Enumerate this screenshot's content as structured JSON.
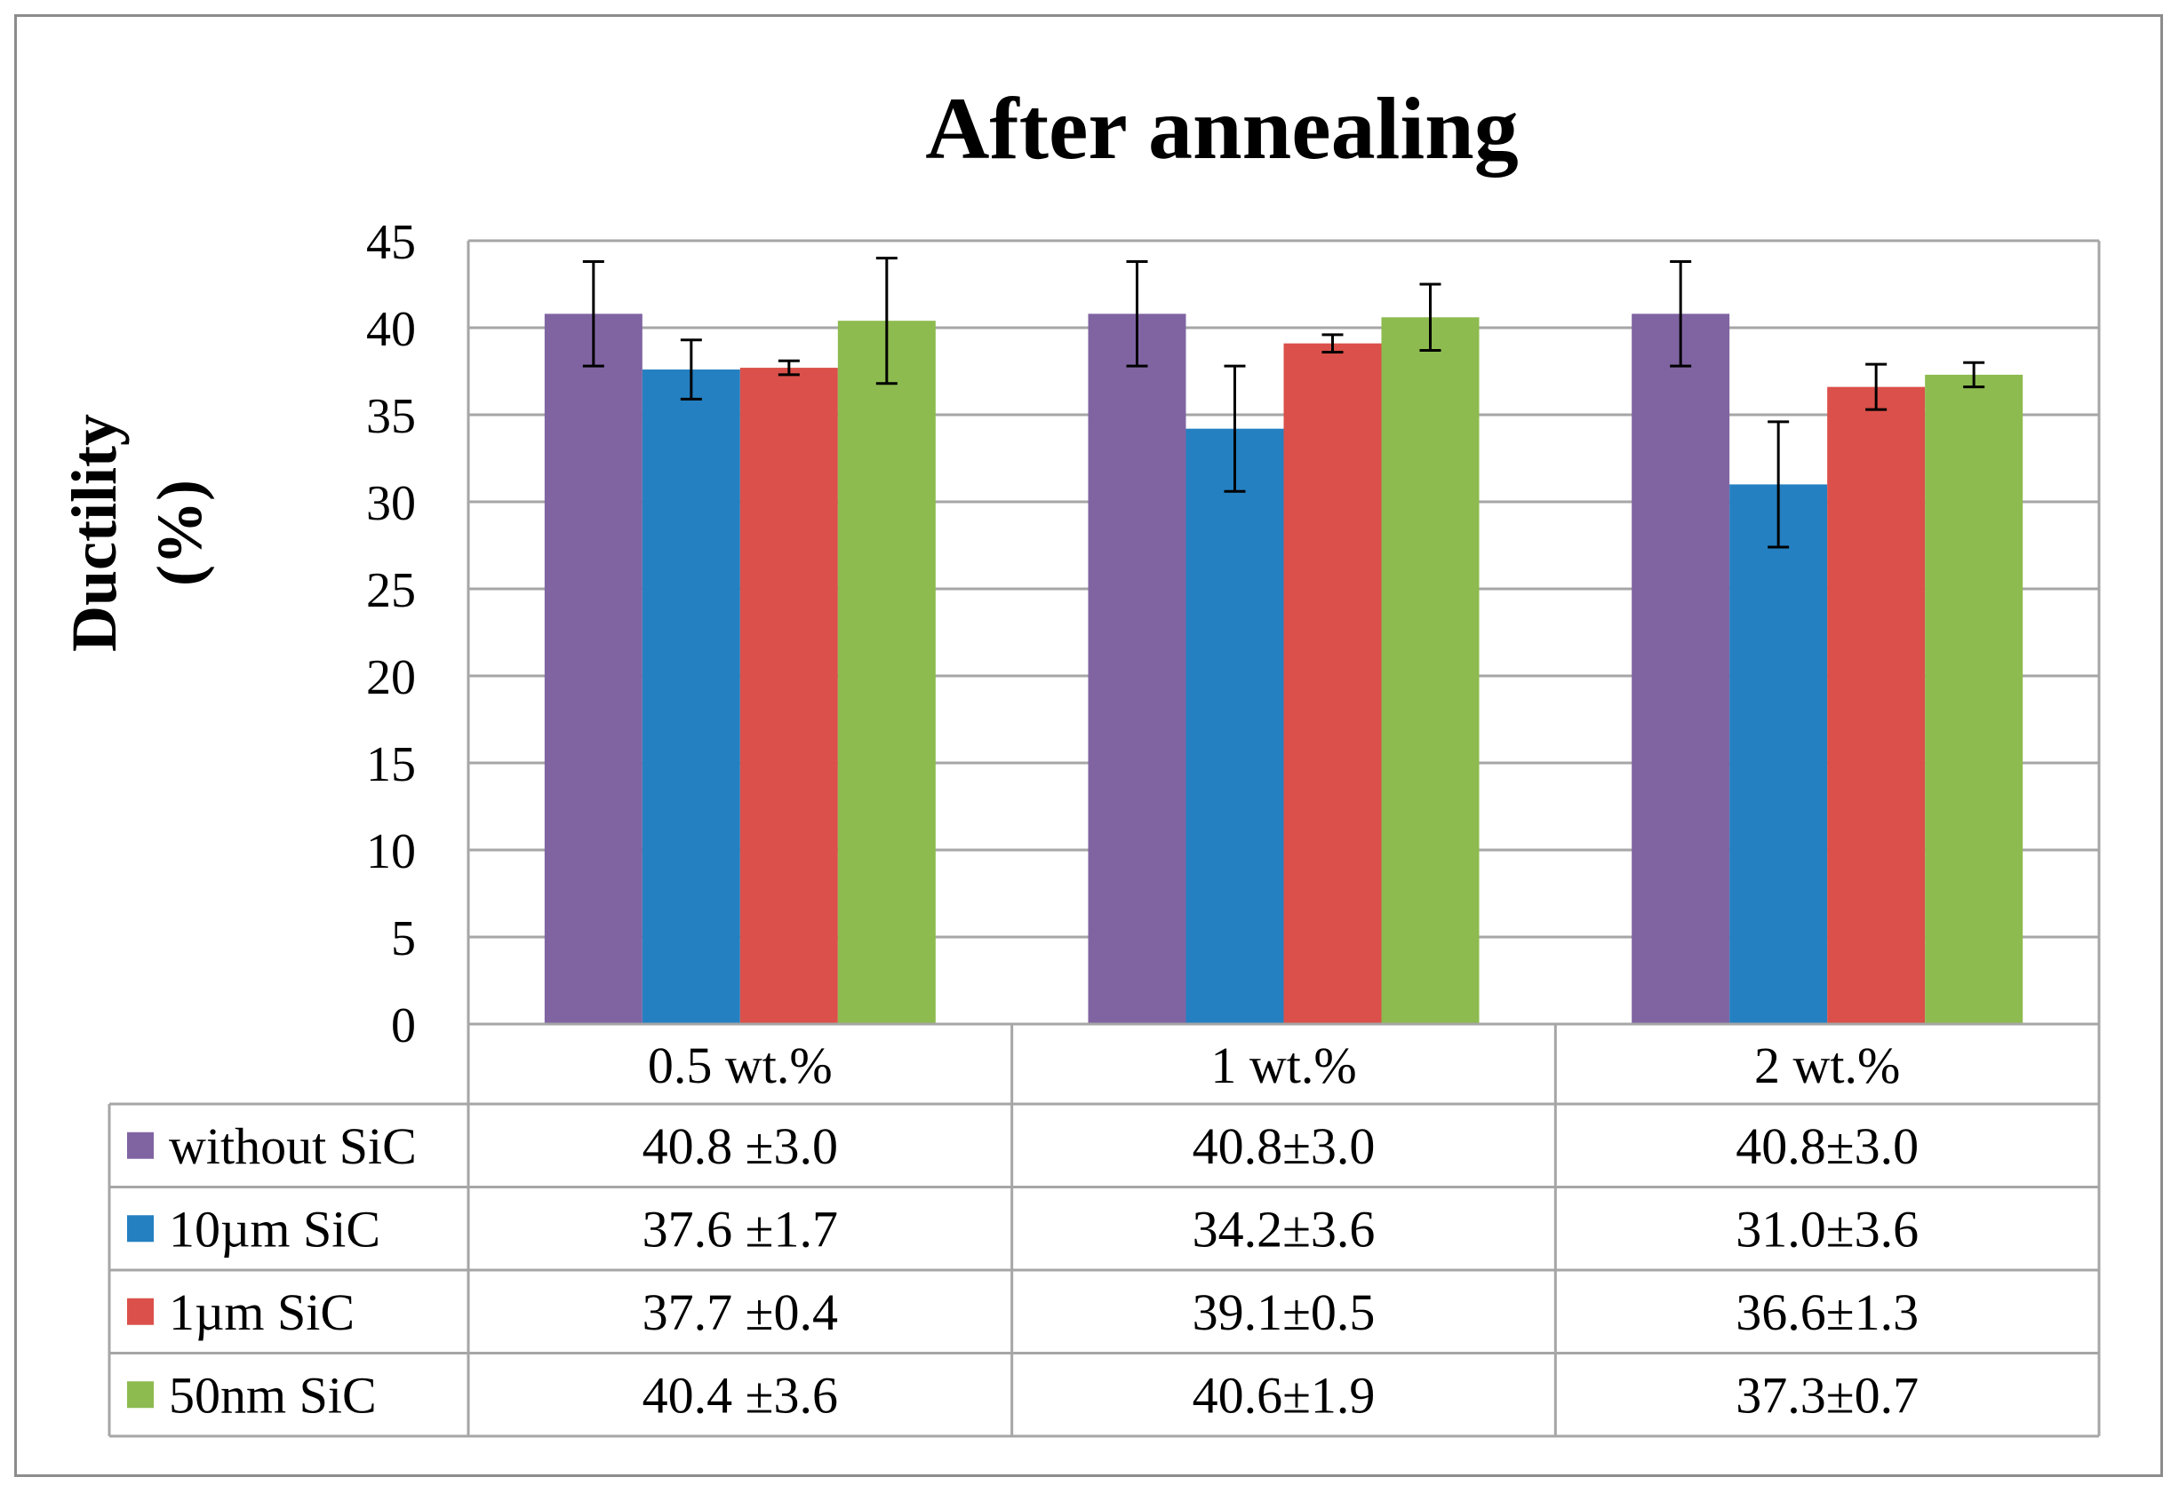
{
  "chart_data": {
    "type": "bar",
    "title": "After annealing",
    "xlabel": "",
    "ylabel_line1": "Ductility",
    "ylabel_line2": "(%)",
    "ylim": [
      0,
      45
    ],
    "yticks": [
      0,
      5,
      10,
      15,
      20,
      25,
      30,
      35,
      40,
      45
    ],
    "ytick_labels": [
      "0",
      "5",
      "10",
      "15",
      "20",
      "25",
      "30",
      "35",
      "40",
      "45"
    ],
    "grid": true,
    "legend": "data-table",
    "categories": [
      "0.5 wt.%",
      "1 wt.%",
      "2 wt.%"
    ],
    "series": [
      {
        "name": "without SiC",
        "color": "#8064A2",
        "values": [
          40.8,
          40.8,
          40.8
        ],
        "errors": [
          3.0,
          3.0,
          3.0
        ],
        "labels": [
          "40.8 ±3.0",
          "40.8±3.0",
          "40.8±3.0"
        ]
      },
      {
        "name": "10µm SiC",
        "color": "#2480C1",
        "values": [
          37.6,
          34.2,
          31.0
        ],
        "errors": [
          1.7,
          3.6,
          3.6
        ],
        "labels": [
          "37.6 ±1.7",
          "34.2±3.6",
          "31.0±3.6"
        ]
      },
      {
        "name": "1µm SiC",
        "color": "#DB504A",
        "values": [
          37.7,
          39.1,
          36.6
        ],
        "errors": [
          0.4,
          0.5,
          1.3
        ],
        "labels": [
          "37.7 ±0.4",
          "39.1±0.5",
          "36.6±1.3"
        ]
      },
      {
        "name": "50nm SiC",
        "color": "#8DBB4F",
        "values": [
          40.4,
          40.6,
          37.3
        ],
        "errors": [
          3.6,
          1.9,
          0.7
        ],
        "labels": [
          "40.4 ±3.6",
          "40.6±1.9",
          "37.3±0.7"
        ]
      }
    ]
  }
}
